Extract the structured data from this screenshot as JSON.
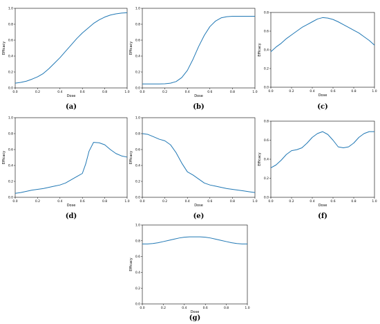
{
  "line_color": "#1f77b4",
  "chart_data": [
    {
      "type": "line",
      "caption": "(a)",
      "xlabel": "Dose",
      "ylabel": "Efficacy",
      "xlim": [
        0,
        1
      ],
      "ylim": [
        0,
        1
      ],
      "xticks": [
        "0.0",
        "0.2",
        "0.4",
        "0.6",
        "0.8",
        "1.0"
      ],
      "yticks": [
        "0.0",
        "0.2",
        "0.4",
        "0.6",
        "0.8",
        "1.0"
      ],
      "grid": false,
      "series": [
        {
          "x": [
            0,
            0.05,
            0.1,
            0.15,
            0.2,
            0.25,
            0.3,
            0.35,
            0.4,
            0.45,
            0.5,
            0.55,
            0.6,
            0.65,
            0.7,
            0.75,
            0.8,
            0.85,
            0.9,
            0.95,
            1.0
          ],
          "y": [
            0.06,
            0.07,
            0.085,
            0.11,
            0.14,
            0.18,
            0.24,
            0.31,
            0.38,
            0.46,
            0.54,
            0.62,
            0.69,
            0.75,
            0.81,
            0.855,
            0.89,
            0.915,
            0.93,
            0.94,
            0.945
          ]
        }
      ]
    },
    {
      "type": "line",
      "caption": "(b)",
      "xlabel": "Dose",
      "ylabel": "Efficacy",
      "xlim": [
        0,
        1
      ],
      "ylim": [
        0,
        1
      ],
      "xticks": [
        "0.0",
        "0.2",
        "0.4",
        "0.6",
        "0.8",
        "1.0"
      ],
      "yticks": [
        "0.0",
        "0.2",
        "0.4",
        "0.6",
        "0.8",
        "1.0"
      ],
      "grid": false,
      "series": [
        {
          "x": [
            0,
            0.05,
            0.1,
            0.15,
            0.2,
            0.25,
            0.3,
            0.35,
            0.4,
            0.45,
            0.5,
            0.55,
            0.6,
            0.65,
            0.7,
            0.75,
            0.8,
            0.85,
            0.9,
            0.95,
            1.0
          ],
          "y": [
            0.05,
            0.05,
            0.05,
            0.05,
            0.052,
            0.06,
            0.08,
            0.13,
            0.22,
            0.36,
            0.52,
            0.66,
            0.77,
            0.84,
            0.88,
            0.895,
            0.9,
            0.9,
            0.9,
            0.9,
            0.9
          ]
        }
      ]
    },
    {
      "type": "line",
      "caption": "(c)",
      "xlabel": "Dose",
      "ylabel": "Efficacy",
      "xlim": [
        0,
        1
      ],
      "ylim": [
        0,
        0.8
      ],
      "xticks": [
        "0.0",
        "0.2",
        "0.4",
        "0.6",
        "0.8",
        "1.0"
      ],
      "yticks": [
        "0.0",
        "0.2",
        "0.4",
        "0.6",
        "0.8"
      ],
      "grid": false,
      "series": [
        {
          "x": [
            0,
            0.05,
            0.1,
            0.15,
            0.2,
            0.25,
            0.3,
            0.35,
            0.4,
            0.45,
            0.5,
            0.55,
            0.6,
            0.65,
            0.7,
            0.75,
            0.8,
            0.85,
            0.9,
            0.95,
            1.0
          ],
          "y": [
            0.38,
            0.43,
            0.47,
            0.52,
            0.56,
            0.6,
            0.64,
            0.67,
            0.7,
            0.73,
            0.745,
            0.74,
            0.725,
            0.7,
            0.67,
            0.64,
            0.61,
            0.58,
            0.54,
            0.5,
            0.45
          ]
        }
      ]
    },
    {
      "type": "line",
      "caption": "(d)",
      "xlabel": "Dose",
      "ylabel": "Efficacy",
      "xlim": [
        0,
        1
      ],
      "ylim": [
        0,
        1
      ],
      "xticks": [
        "0.0",
        "0.2",
        "0.4",
        "0.6",
        "0.8",
        "1.0"
      ],
      "yticks": [
        "0.0",
        "0.2",
        "0.4",
        "0.6",
        "0.8",
        "1.0"
      ],
      "grid": false,
      "series": [
        {
          "x": [
            0,
            0.05,
            0.1,
            0.15,
            0.2,
            0.25,
            0.3,
            0.35,
            0.4,
            0.45,
            0.5,
            0.55,
            0.6,
            0.63,
            0.66,
            0.7,
            0.75,
            0.8,
            0.85,
            0.9,
            0.95,
            1.0
          ],
          "y": [
            0.05,
            0.06,
            0.075,
            0.09,
            0.1,
            0.11,
            0.125,
            0.14,
            0.155,
            0.18,
            0.22,
            0.26,
            0.3,
            0.42,
            0.58,
            0.69,
            0.685,
            0.66,
            0.6,
            0.55,
            0.52,
            0.505
          ]
        }
      ]
    },
    {
      "type": "line",
      "caption": "(e)",
      "xlabel": "Dose",
      "ylabel": "Efficacy",
      "xlim": [
        0,
        1
      ],
      "ylim": [
        0,
        1
      ],
      "xticks": [
        "0.0",
        "0.2",
        "0.4",
        "0.6",
        "0.8",
        "1.0"
      ],
      "yticks": [
        "0.0",
        "0.2",
        "0.4",
        "0.6",
        "0.8",
        "1.0"
      ],
      "grid": false,
      "series": [
        {
          "x": [
            0,
            0.05,
            0.1,
            0.15,
            0.2,
            0.25,
            0.3,
            0.35,
            0.4,
            0.45,
            0.5,
            0.55,
            0.6,
            0.65,
            0.7,
            0.75,
            0.8,
            0.85,
            0.9,
            0.95,
            1.0
          ],
          "y": [
            0.8,
            0.79,
            0.76,
            0.73,
            0.71,
            0.66,
            0.56,
            0.43,
            0.32,
            0.28,
            0.23,
            0.18,
            0.155,
            0.14,
            0.125,
            0.11,
            0.1,
            0.09,
            0.08,
            0.07,
            0.06
          ]
        }
      ]
    },
    {
      "type": "line",
      "caption": "(f)",
      "xlabel": "Dose",
      "ylabel": "Efficacy",
      "xlim": [
        0,
        1
      ],
      "ylim": [
        0,
        0.8
      ],
      "xticks": [
        "0.0",
        "0.2",
        "0.4",
        "0.6",
        "0.8",
        "1.0"
      ],
      "yticks": [
        "0.0",
        "0.2",
        "0.4",
        "0.6",
        "0.8"
      ],
      "grid": false,
      "series": [
        {
          "x": [
            0,
            0.05,
            0.1,
            0.15,
            0.2,
            0.25,
            0.3,
            0.35,
            0.4,
            0.45,
            0.5,
            0.55,
            0.6,
            0.65,
            0.7,
            0.75,
            0.8,
            0.85,
            0.9,
            0.95,
            1.0
          ],
          "y": [
            0.31,
            0.34,
            0.39,
            0.45,
            0.49,
            0.5,
            0.52,
            0.57,
            0.63,
            0.67,
            0.69,
            0.66,
            0.6,
            0.53,
            0.52,
            0.53,
            0.57,
            0.63,
            0.67,
            0.69,
            0.69
          ]
        }
      ]
    },
    {
      "type": "line",
      "caption": "(g)",
      "xlabel": "Dose",
      "ylabel": "Efficacy",
      "xlim": [
        0,
        1
      ],
      "ylim": [
        0,
        1
      ],
      "xticks": [
        "0.0",
        "0.2",
        "0.4",
        "0.6",
        "0.8",
        "1.0"
      ],
      "yticks": [
        "0.0",
        "0.2",
        "0.4",
        "0.6",
        "0.8",
        "1.0"
      ],
      "grid": false,
      "series": [
        {
          "x": [
            0,
            0.05,
            0.1,
            0.15,
            0.2,
            0.25,
            0.3,
            0.35,
            0.4,
            0.45,
            0.5,
            0.55,
            0.6,
            0.65,
            0.7,
            0.75,
            0.8,
            0.85,
            0.9,
            0.95,
            1.0
          ],
          "y": [
            0.76,
            0.76,
            0.765,
            0.775,
            0.79,
            0.805,
            0.82,
            0.835,
            0.845,
            0.85,
            0.85,
            0.85,
            0.845,
            0.835,
            0.82,
            0.805,
            0.79,
            0.775,
            0.765,
            0.76,
            0.76
          ]
        }
      ]
    }
  ]
}
